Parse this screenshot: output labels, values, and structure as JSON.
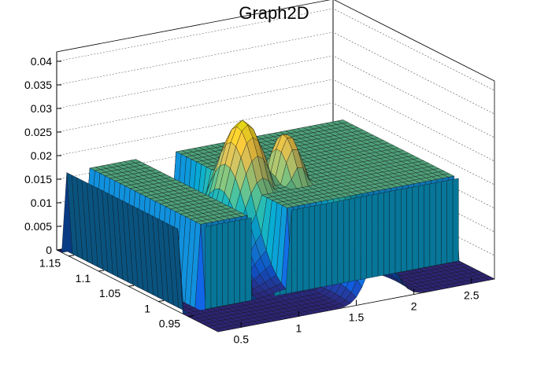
{
  "title": "Graph2D",
  "chart_data": {
    "type": "surface",
    "title": "Graph2D",
    "palette": "kBird",
    "colors": [
      "#352a87",
      "#0f5cdd",
      "#1481d6",
      "#06a4ca",
      "#2eb7a4",
      "#87bf77",
      "#d1bb59",
      "#fec832",
      "#f9fb0e"
    ],
    "xlim": [
      0.3,
      2.7
    ],
    "ylim": [
      0.9,
      1.17
    ],
    "zlim": [
      0,
      0.042
    ],
    "x_ticks": [
      "0.5",
      "1",
      "1.5",
      "2",
      "2.5"
    ],
    "y_ticks": [
      "0.95",
      "1",
      "1.05",
      "1.1",
      "1.15"
    ],
    "z_ticks": [
      "0",
      "0.005",
      "0.01",
      "0.015",
      "0.02",
      "0.025",
      "0.03",
      "0.035",
      "0.04"
    ],
    "grid": true,
    "features": {
      "plateau_level": 0.0175,
      "plateau_y_range": [
        0.96,
        1.16
      ],
      "plateau_x_gaps": [
        [
          0.3,
          0.5
        ],
        [
          0.92,
          1.22
        ]
      ],
      "peaks": [
        {
          "x": 1.3,
          "y": 1.05,
          "z": 0.0305
        },
        {
          "x": 1.62,
          "y": 1.04,
          "z": 0.027
        },
        {
          "x": 1.72,
          "y": 0.93,
          "z": 0.0195
        }
      ]
    }
  }
}
